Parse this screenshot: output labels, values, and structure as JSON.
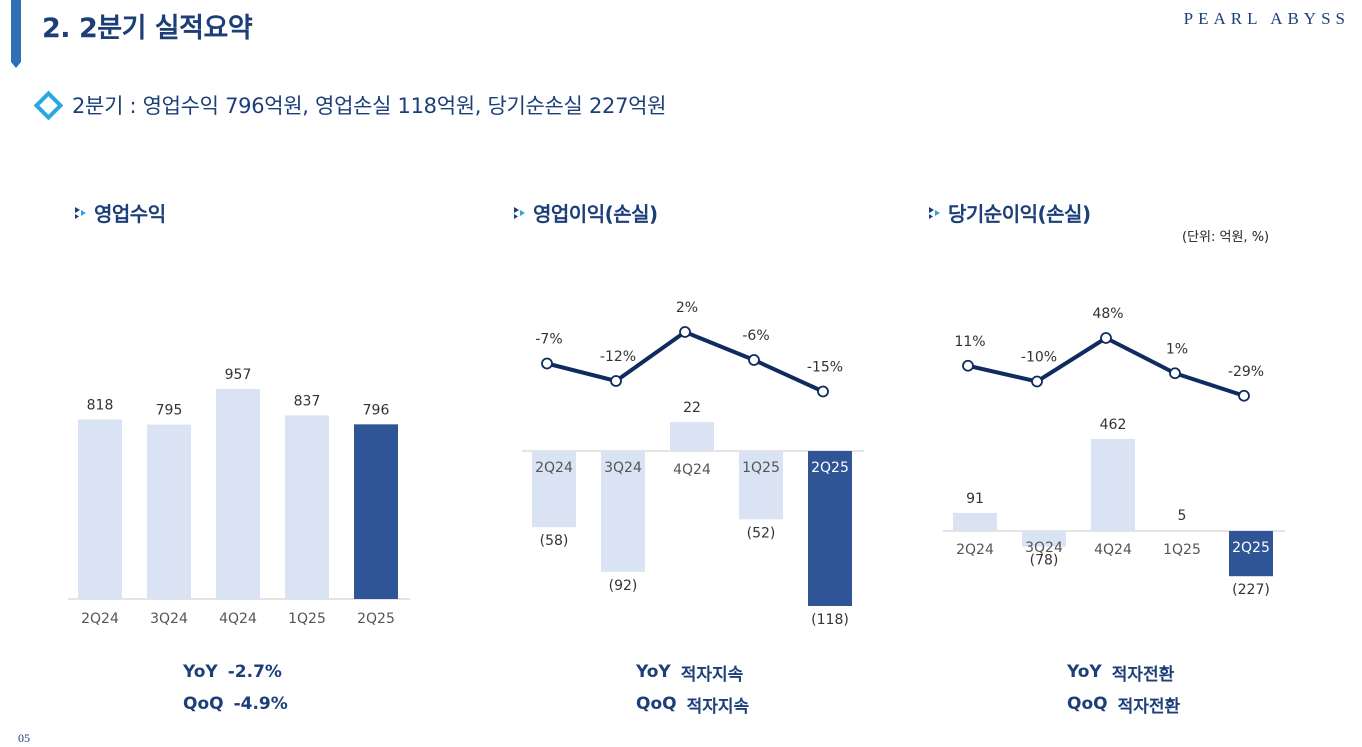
{
  "header": {
    "title": "2. 2분기 실적요약",
    "logo": "PEARL ABYSS"
  },
  "summary": {
    "text": "2분기 : 영업수익 796억원, 영업손실 118억원, 당기순손실 227억원"
  },
  "unit_label": "(단위: 억원, %)",
  "page_number": "05",
  "colors": {
    "bar_light": "#dae3f4",
    "bar_highlight": "#2f5597",
    "line": "#102b5f",
    "title": "#1c3f79",
    "accent": "#28a7e1"
  },
  "chart_data": [
    {
      "type": "bar",
      "title": "영업수익",
      "categories": [
        "2Q24",
        "3Q24",
        "4Q24",
        "1Q25",
        "2Q25"
      ],
      "values": [
        818,
        795,
        957,
        837,
        796
      ],
      "value_labels": [
        "818",
        "795",
        "957",
        "837",
        "796"
      ],
      "highlight_index": 4,
      "ylim": [
        0,
        957
      ],
      "metrics": [
        {
          "label": "YoY",
          "value": "-2.7%"
        },
        {
          "label": "QoQ",
          "value": "-4.9%"
        }
      ]
    },
    {
      "type": "bar",
      "title": "영업이익(손실)",
      "categories": [
        "2Q24",
        "3Q24",
        "4Q24",
        "1Q25",
        "2Q25"
      ],
      "values": [
        -58,
        -92,
        22,
        -52,
        -118
      ],
      "value_labels": [
        "(58)",
        "(92)",
        "22",
        "(52)",
        "(118)"
      ],
      "highlight_index": 4,
      "line_series": {
        "values": [
          -7,
          -12,
          2,
          -6,
          -15
        ],
        "labels": [
          "-7%",
          "-12%",
          "2%",
          "-6%",
          "-15%"
        ]
      },
      "metrics": [
        {
          "label": "YoY",
          "value": "적자지속"
        },
        {
          "label": "QoQ",
          "value": "적자지속"
        }
      ]
    },
    {
      "type": "bar",
      "title": "당기순이익(손실)",
      "categories": [
        "2Q24",
        "3Q24",
        "4Q24",
        "1Q25",
        "2Q25"
      ],
      "values": [
        91,
        -78,
        462,
        5,
        -227
      ],
      "value_labels": [
        "91",
        "(78)",
        "462",
        "5",
        "(227)"
      ],
      "highlight_index": 4,
      "line_series": {
        "values": [
          11,
          -10,
          48,
          1,
          -29
        ],
        "labels": [
          "11%",
          "-10%",
          "48%",
          "1%",
          "-29%"
        ]
      },
      "metrics": [
        {
          "label": "YoY",
          "value": "적자전환"
        },
        {
          "label": "QoQ",
          "value": "적자전환"
        }
      ]
    }
  ]
}
